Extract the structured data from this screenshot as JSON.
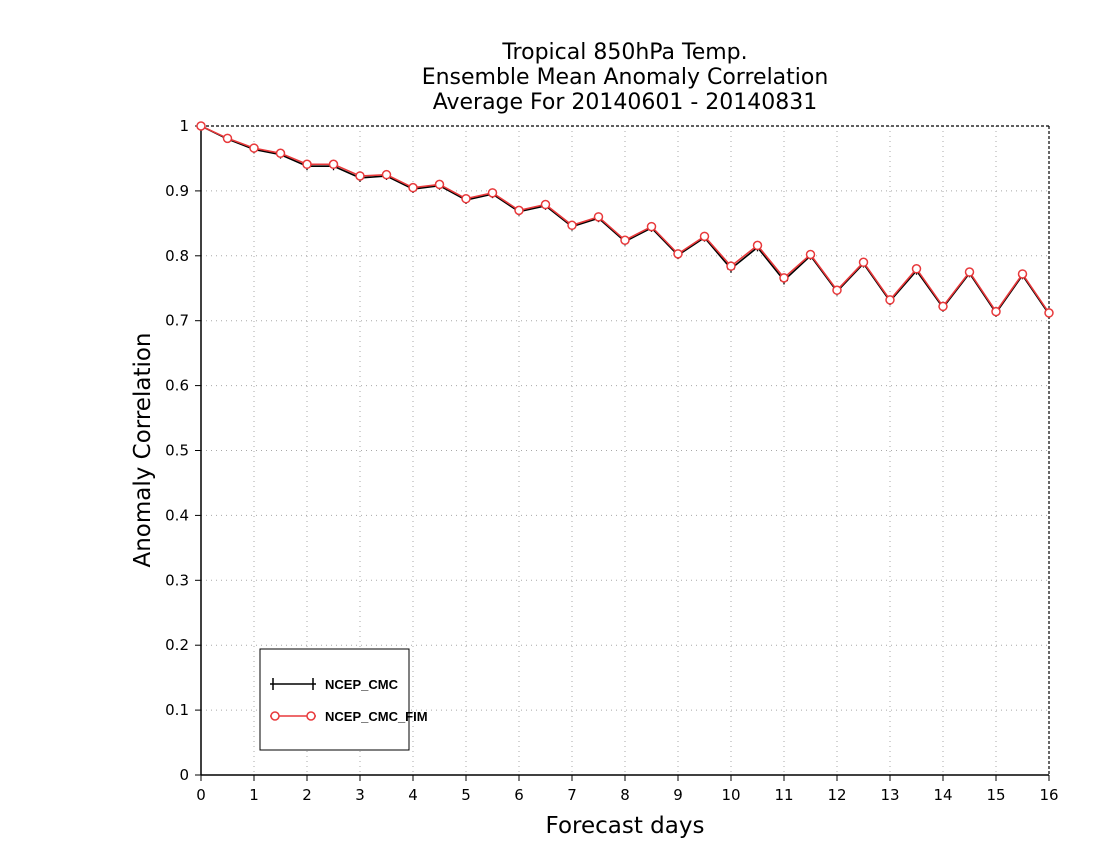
{
  "chart_data": {
    "type": "line",
    "title": [
      "Tropical 850hPa Temp.",
      "Ensemble Mean Anomaly Correlation",
      "Average For 20140601 - 20140831"
    ],
    "xlabel": "Forecast days",
    "ylabel": "Anomaly Correlation",
    "xlim": [
      0,
      16
    ],
    "ylim": [
      0,
      1
    ],
    "xticks": [
      0,
      1,
      2,
      3,
      4,
      5,
      6,
      7,
      8,
      9,
      10,
      11,
      12,
      13,
      14,
      15,
      16
    ],
    "yticks": [
      0,
      0.1,
      0.2,
      0.3,
      0.4,
      0.5,
      0.6,
      0.7,
      0.8,
      0.9,
      1
    ],
    "ytick_labels": [
      "0",
      "0.1",
      "0.2",
      "0.3",
      "0.4",
      "0.5",
      "0.6",
      "0.7",
      "0.8",
      "0.9",
      "1"
    ],
    "grid": true,
    "legend_position": "bottom-left",
    "x": [
      0,
      0.5,
      1,
      1.5,
      2,
      2.5,
      3,
      3.5,
      4,
      4.5,
      5,
      5.5,
      6,
      6.5,
      7,
      7.5,
      8,
      8.5,
      9,
      9.5,
      10,
      10.5,
      11,
      11.5,
      12,
      12.5,
      13,
      13.5,
      14,
      14.5,
      15,
      15.5,
      16
    ],
    "series": [
      {
        "name": "NCEP_CMC",
        "color": "#000000",
        "marker": "plus",
        "values": [
          1.0,
          0.98,
          0.964,
          0.956,
          0.938,
          0.938,
          0.92,
          0.923,
          0.903,
          0.908,
          0.886,
          0.895,
          0.868,
          0.877,
          0.845,
          0.858,
          0.822,
          0.843,
          0.801,
          0.828,
          0.78,
          0.813,
          0.762,
          0.8,
          0.745,
          0.788,
          0.73,
          0.777,
          0.72,
          0.773,
          0.712,
          0.77,
          0.71
        ]
      },
      {
        "name": "NCEP_CMC_FIM",
        "color": "#e8393b",
        "marker": "circle",
        "values": [
          1.0,
          0.981,
          0.966,
          0.958,
          0.941,
          0.941,
          0.923,
          0.925,
          0.905,
          0.91,
          0.888,
          0.897,
          0.87,
          0.879,
          0.847,
          0.86,
          0.824,
          0.845,
          0.803,
          0.83,
          0.784,
          0.816,
          0.766,
          0.802,
          0.747,
          0.79,
          0.732,
          0.78,
          0.722,
          0.775,
          0.714,
          0.772,
          0.712
        ]
      }
    ]
  }
}
